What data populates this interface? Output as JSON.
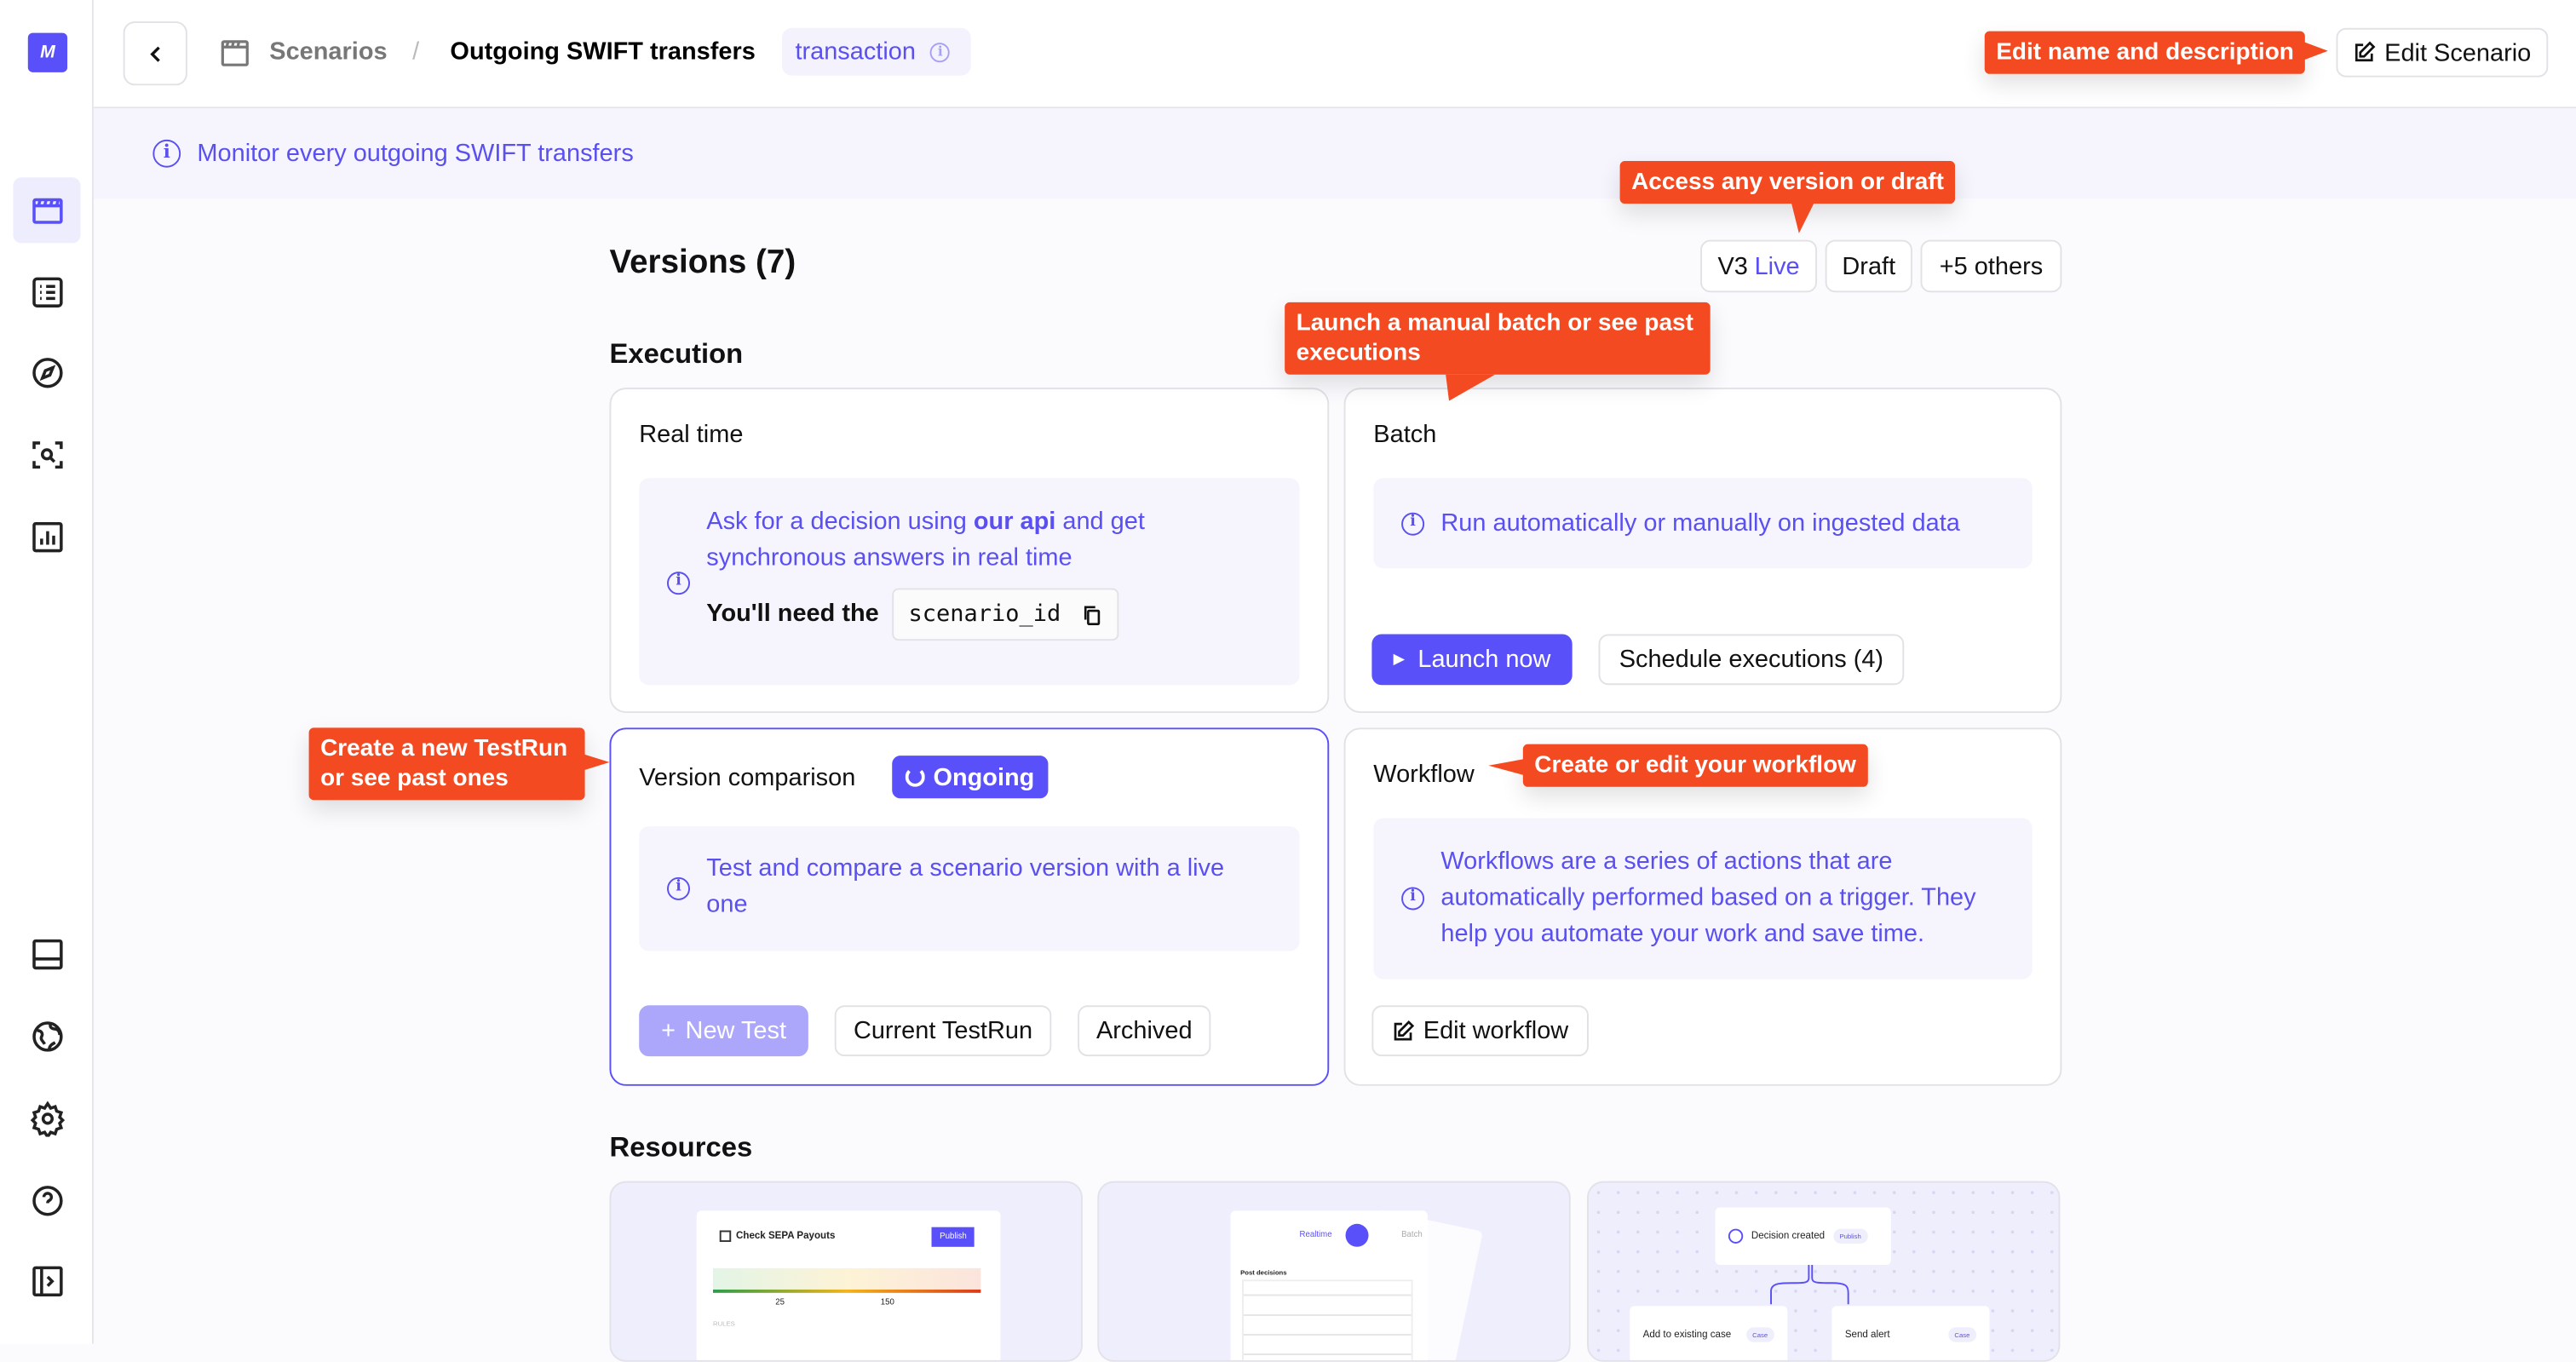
{
  "app": {
    "logo_text": "M",
    "accent": "#5a50f9",
    "annotation_color": "#f44a22"
  },
  "sidebar": {
    "top_items": [
      {
        "icon": "scenarios-clapperboard-icon",
        "active": true
      },
      {
        "icon": "list-icon"
      },
      {
        "icon": "compass-icon"
      },
      {
        "icon": "scan-search-icon"
      },
      {
        "icon": "analytics-chart-icon"
      }
    ],
    "bottom_items": [
      {
        "icon": "panel-bottom-icon"
      },
      {
        "icon": "globe-icon"
      },
      {
        "icon": "gear-icon"
      },
      {
        "icon": "help-icon"
      },
      {
        "icon": "sidebar-toggle-icon"
      }
    ]
  },
  "header": {
    "breadcrumb_root": "Scenarios",
    "separator": "/",
    "title": "Outgoing SWIFT transfers",
    "trigger_badge": "transaction",
    "edit_label": "Edit Scenario"
  },
  "description": "Monitor every outgoing SWIFT transfers",
  "versions": {
    "title": "Versions (7)",
    "live_version": "V3",
    "live_label": "Live",
    "draft": "Draft",
    "others": "+5 others"
  },
  "execution": {
    "title": "Execution",
    "realtime": {
      "title": "Real time",
      "text_pre": "Ask for a decision using ",
      "text_link": "our api",
      "text_post": " and get synchronous answers in real time",
      "need_label": "You'll need the",
      "code": "scenario_id"
    },
    "batch": {
      "title": "Batch",
      "text": "Run automatically or manually on ingested data",
      "launch": "Launch now",
      "schedule": "Schedule executions (4)"
    }
  },
  "comparison": {
    "title": "Version comparison",
    "status": "Ongoing",
    "text": "Test and compare a scenario version with a live one",
    "new_test": "New Test",
    "current": "Current TestRun",
    "archived": "Archived"
  },
  "workflow": {
    "title": "Workflow",
    "text": "Workflows are a series of actions that are automatically performed based on a trigger. They help you automate your work and save time.",
    "edit": "Edit workflow"
  },
  "resources": {
    "title": "Resources",
    "card1": {
      "title": "Check SEPA Payouts",
      "button": "Publish",
      "scale": [
        "25",
        "150"
      ],
      "rules": "RULES"
    },
    "card2": {
      "realtime": "Realtime",
      "batch": "Batch",
      "label": "Post decisions"
    },
    "card3": {
      "node": "Decision created",
      "node_badge": "Publish",
      "left": "Add to existing case",
      "left_badge": "Case",
      "right": "Send alert",
      "right_badge": "Case"
    }
  },
  "annotations": {
    "edit": "Edit name and description",
    "versions": "Access any version or draft",
    "batch": "Launch a manual batch or see past executions",
    "testrun": "Create a new TestRun or see past ones",
    "workflow": "Create or edit your workflow"
  }
}
